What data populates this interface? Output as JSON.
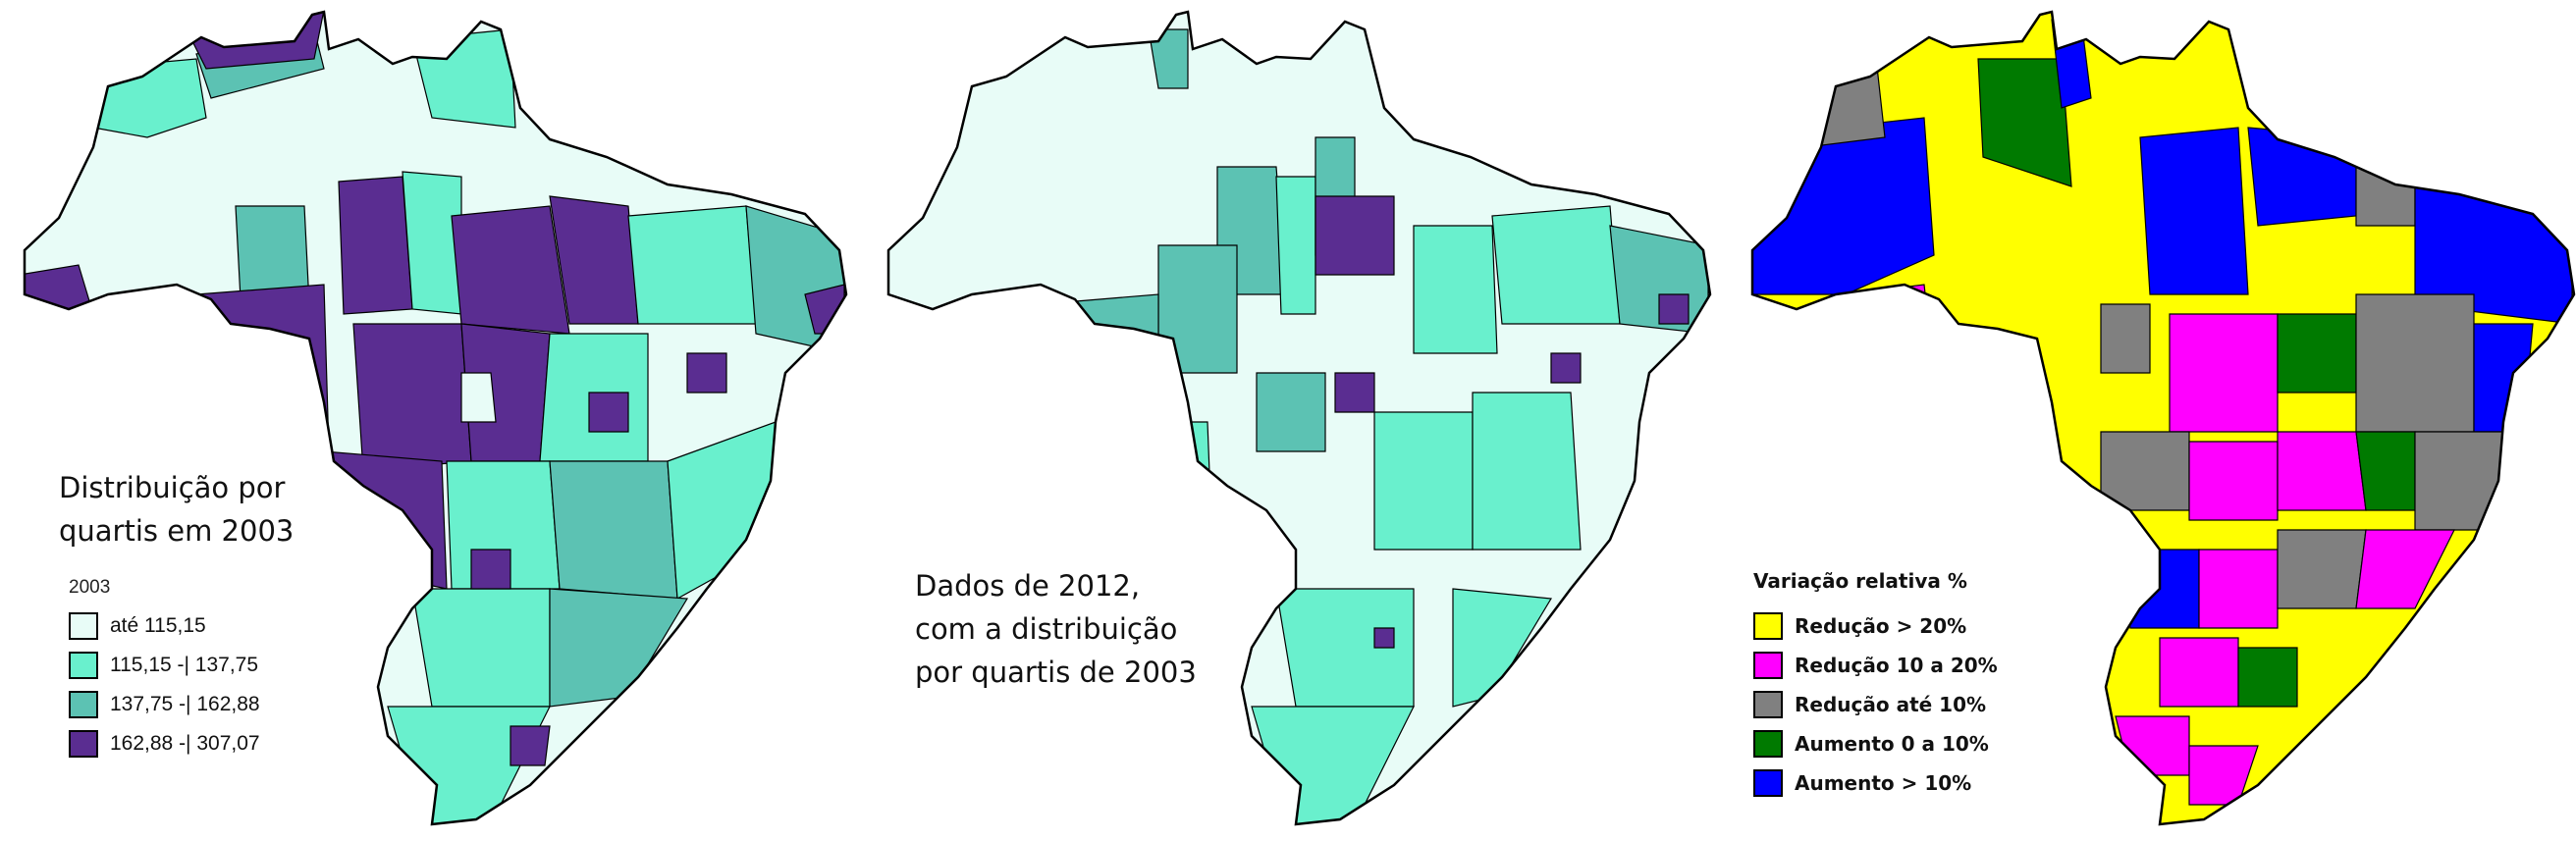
{
  "colors": {
    "q1": "#e8fcf7",
    "q2": "#69f0cd",
    "q3": "#5cc2b3",
    "q4": "#5a2d91",
    "reducao_maior_20": "#ffff00",
    "reducao_10_20": "#ff00ff",
    "reducao_ate_10": "#808080",
    "aumento_0_10": "#007a00",
    "aumento_maior_10": "#0000ff",
    "outline": "#000000"
  },
  "panel1": {
    "caption_line1": "Distribuição por",
    "caption_line2": "quartis em 2003",
    "legend": {
      "title": "2003",
      "items": [
        {
          "label": "até 115,15",
          "color": "#e8fcf7"
        },
        {
          "label": "115,15 -| 137,75",
          "color": "#69f0cd"
        },
        {
          "label": "137,75 -| 162,88",
          "color": "#5cc2b3"
        },
        {
          "label": "162,88 -| 307,07",
          "color": "#5a2d91"
        }
      ]
    }
  },
  "panel2": {
    "caption_line1": "Dados de 2012,",
    "caption_line2": "com a distribuição",
    "caption_line3": "por quartis de 2003"
  },
  "panel3": {
    "legend": {
      "title": "Variação relativa %",
      "items": [
        {
          "label": "Redução > 20%",
          "color": "#ffff00"
        },
        {
          "label": "Redução 10 a 20%",
          "color": "#ff00ff"
        },
        {
          "label": "Redução até 10%",
          "color": "#808080"
        },
        {
          "label": "Aumento 0 a 10%",
          "color": "#007a00"
        },
        {
          "label": "Aumento > 10%",
          "color": "#0000ff"
        }
      ]
    }
  }
}
